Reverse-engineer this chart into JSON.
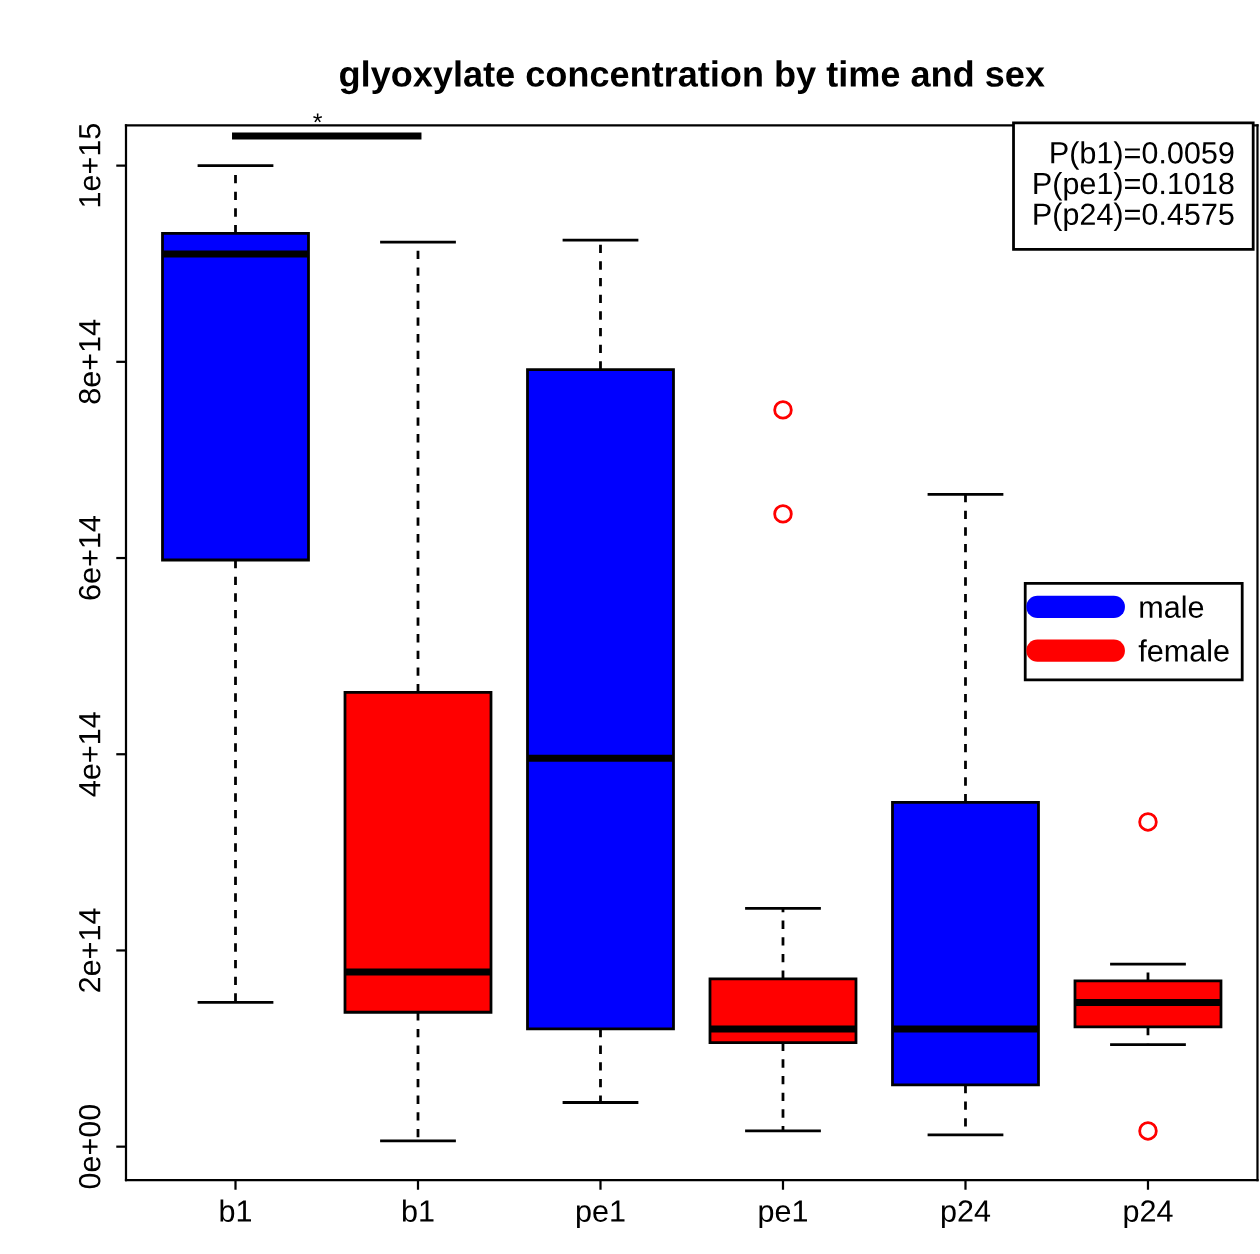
{
  "chart_data": {
    "type": "box",
    "title": "glyoxylate concentration by time and sex",
    "categories": [
      "b1",
      "b1",
      "pe1",
      "pe1",
      "p24",
      "p24"
    ],
    "series": [
      {
        "name": "male",
        "color": "#0000ff",
        "boxes": [
          {
            "low": 147000000000000.0,
            "q1": 598000000000000.0,
            "median": 910000000000000.0,
            "q3": 931000000000000.0,
            "high": 1000000000000000.0
          },
          null,
          {
            "low": 45000000000000.0,
            "q1": 120000000000000.0,
            "median": 396000000000000.0,
            "q3": 792000000000000.0,
            "high": 924000000000000.0
          },
          null,
          {
            "low": 12000000000000.0,
            "q1": 63000000000000.0,
            "median": 120000000000000.0,
            "q3": 351000000000000.0,
            "high": 665000000000000.0
          },
          null
        ]
      },
      {
        "name": "female",
        "color": "#ff0000",
        "boxes": [
          null,
          {
            "low": 6000000000000.0,
            "q1": 137000000000000.0,
            "median": 178000000000000.0,
            "q3": 463000000000000.0,
            "high": 922000000000000.0
          },
          null,
          {
            "low": 16000000000000.0,
            "q1": 106000000000000.0,
            "median": 120000000000000.0,
            "q3": 171000000000000.0,
            "high": 243000000000000.0,
            "outliers": [
              751000000000000.0,
              645000000000000.0
            ]
          },
          null,
          {
            "low": 104000000000000.0,
            "q1": 122000000000000.0,
            "median": 147000000000000.0,
            "q3": 169000000000000.0,
            "high": 186000000000000.0,
            "outliers": [
              331000000000000.0,
              16000000000000.0
            ]
          }
        ]
      }
    ],
    "ylim": [
      -34000000000000.0,
      1041000000000000.0
    ],
    "yticks": [
      {
        "value": 0,
        "label": "0e+00"
      },
      {
        "value": 200000000000000.0,
        "label": "2e+14"
      },
      {
        "value": 400000000000000.0,
        "label": "4e+14"
      },
      {
        "value": 600000000000000.0,
        "label": "6e+14"
      },
      {
        "value": 800000000000000.0,
        "label": "8e+14"
      },
      {
        "value": 1000000000000000.0,
        "label": "1e+15"
      }
    ],
    "annotations": [
      "P(b1)=0.0059\nP(pe1)=0.1018\nP(p24)=0.4575",
      "*"
    ],
    "legend": "right",
    "grid": false
  }
}
